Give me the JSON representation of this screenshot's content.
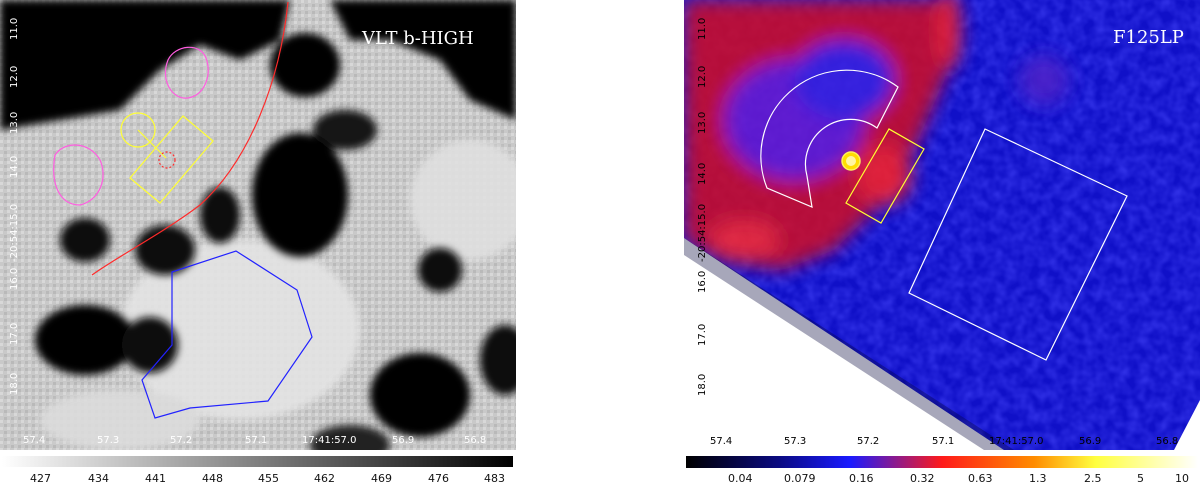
{
  "left": {
    "title": "VLT b-HIGH",
    "ra_ticks": [
      "57.4",
      "57.3",
      "57.2",
      "57.1",
      "17:41:57.0",
      "56.9",
      "56.8"
    ],
    "dec_ticks": [
      "11.0",
      "12.0",
      "13.0",
      "14.0",
      "-20:54:15.0",
      "16.0",
      "17.0",
      "18.0"
    ],
    "colorbar_ticks": [
      "427",
      "434",
      "441",
      "448",
      "455",
      "462",
      "469",
      "476",
      "483"
    ],
    "colormap": "gray",
    "region_colors": {
      "contour": "#ff5de0",
      "arc": "#ff2a2a",
      "box": "#ffff33",
      "source": "#ff3030",
      "polygon": "#2222ff"
    }
  },
  "right": {
    "title": "F125LP",
    "ra_ticks": [
      "57.4",
      "57.3",
      "57.2",
      "57.1",
      "17:41:57.0",
      "56.9",
      "56.8"
    ],
    "dec_ticks": [
      "11.0",
      "12.0",
      "13.0",
      "14.0",
      "-20:54:15.0",
      "16.0",
      "17.0",
      "18.0"
    ],
    "colorbar_ticks": [
      "0.04",
      "0.079",
      "0.16",
      "0.32",
      "0.63",
      "1.3",
      "2.5",
      "5",
      "10"
    ],
    "colormap": "heat",
    "region_colors": {
      "annulus": "#ffffff",
      "box": "#ffff33",
      "background": "#ffffff"
    }
  }
}
